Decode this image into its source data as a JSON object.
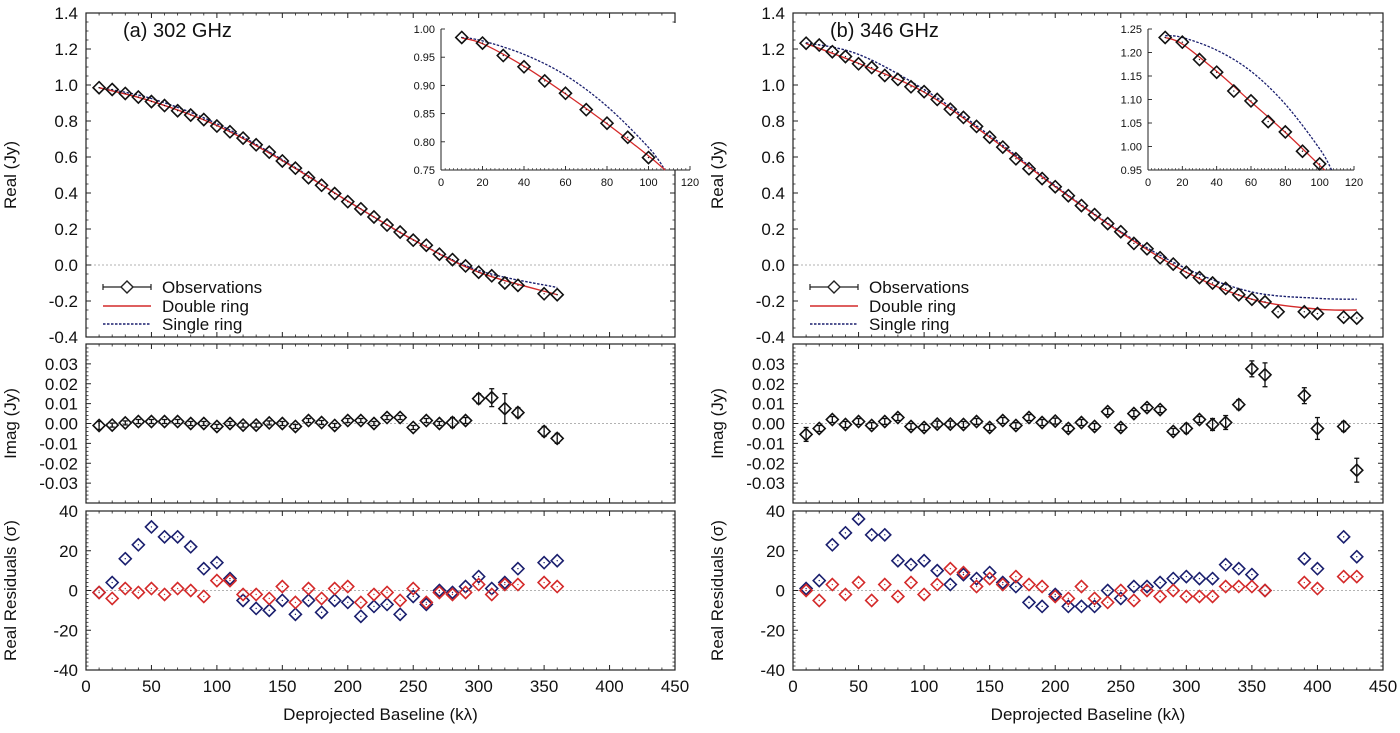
{
  "chart_data": [
    {
      "type": "scatter",
      "panel_label": "(a) 302 GHz",
      "xlabel": "Deprojected Baseline (kλ)",
      "xlim": [
        0,
        450
      ],
      "xticks": [
        0,
        50,
        100,
        150,
        200,
        250,
        300,
        350,
        400,
        450
      ],
      "legend": {
        "position": "bottom-left",
        "entries": [
          "Observations",
          "Double ring",
          "Single ring"
        ]
      },
      "real": {
        "ylabel": "Real (Jy)",
        "ylim": [
          -0.4,
          1.4
        ],
        "yticks": [
          "1.4",
          "1.2",
          "1.0",
          "0.8",
          "0.6",
          "0.4",
          "0.2",
          "0.0",
          "-0.2",
          "-0.4"
        ],
        "x": [
          10,
          20,
          30,
          40,
          50,
          60,
          70,
          80,
          90,
          100,
          110,
          120,
          130,
          140,
          150,
          160,
          170,
          180,
          190,
          200,
          210,
          220,
          230,
          240,
          250,
          260,
          270,
          280,
          290,
          300,
          310,
          320,
          330,
          350,
          360
        ],
        "observations": [
          0.985,
          0.975,
          0.953,
          0.933,
          0.908,
          0.886,
          0.857,
          0.833,
          0.808,
          0.772,
          0.74,
          0.705,
          0.668,
          0.627,
          0.578,
          0.538,
          0.485,
          0.443,
          0.397,
          0.352,
          0.312,
          0.267,
          0.222,
          0.183,
          0.138,
          0.11,
          0.06,
          0.03,
          -0.005,
          -0.04,
          -0.06,
          -0.1,
          -0.113,
          -0.16,
          -0.165
        ],
        "double_ring": {
          "x": [
            10,
            50,
            100,
            150,
            200,
            250,
            300,
            360
          ],
          "y": [
            0.985,
            0.91,
            0.775,
            0.58,
            0.355,
            0.14,
            -0.04,
            -0.165
          ]
        },
        "single_ring": {
          "x": [
            10,
            50,
            100,
            150,
            200,
            250,
            300,
            360
          ],
          "y": [
            0.985,
            0.925,
            0.785,
            0.585,
            0.355,
            0.14,
            -0.03,
            -0.125
          ]
        }
      },
      "inset": {
        "xlim": [
          0,
          120
        ],
        "ylim": [
          0.75,
          1.0
        ],
        "xticks": [
          "0",
          "20",
          "40",
          "60",
          "80",
          "100",
          "120"
        ],
        "yticks": [
          "1.00",
          "0.95",
          "0.90",
          "0.85",
          "0.80",
          "0.75"
        ],
        "x": [
          10,
          20,
          30,
          40,
          50,
          60,
          70,
          80,
          90,
          100
        ],
        "observations": [
          0.985,
          0.975,
          0.953,
          0.933,
          0.908,
          0.886,
          0.857,
          0.833,
          0.808,
          0.772
        ],
        "double_ring": {
          "x": [
            10,
            20,
            40,
            60,
            80,
            100,
            108
          ],
          "y": [
            0.984,
            0.974,
            0.934,
            0.885,
            0.832,
            0.775,
            0.75
          ]
        },
        "single_ring": {
          "x": [
            10,
            20,
            40,
            60,
            80,
            100,
            108
          ],
          "y": [
            0.985,
            0.979,
            0.955,
            0.918,
            0.863,
            0.79,
            0.75
          ]
        }
      },
      "imag": {
        "ylabel": "Imag (Jy)",
        "ylim": [
          -0.04,
          0.04
        ],
        "yticks": [
          "0.03",
          "0.02",
          "0.01",
          "0.00",
          "-0.01",
          "-0.02",
          "-0.03"
        ],
        "x": [
          10,
          20,
          30,
          40,
          50,
          60,
          70,
          80,
          90,
          100,
          110,
          120,
          130,
          140,
          150,
          160,
          170,
          180,
          190,
          200,
          210,
          220,
          230,
          240,
          250,
          260,
          270,
          280,
          290,
          300,
          310,
          320,
          330,
          350,
          360
        ],
        "y": [
          -0.001,
          -0.0008,
          0.0003,
          0.001,
          0.001,
          0.001,
          0.001,
          0.0,
          0.0,
          -0.0015,
          0.0,
          -0.0008,
          -0.0008,
          0.0003,
          0.0,
          -0.0015,
          0.0015,
          0.0005,
          -0.001,
          0.0015,
          0.0015,
          0.0,
          0.003,
          0.003,
          -0.002,
          0.0015,
          0.0,
          0.0005,
          0.0015,
          0.0125,
          0.013,
          0.0075,
          0.0055,
          -0.004,
          -0.0075
        ],
        "err": [
          0.002,
          0.001,
          0.001,
          0.001,
          0.001,
          0.001,
          0.001,
          0.001,
          0.001,
          0.001,
          0.001,
          0.001,
          0.001,
          0.001,
          0.001,
          0.001,
          0.001,
          0.001,
          0.001,
          0.001,
          0.001,
          0.001,
          0.001,
          0.001,
          0.001,
          0.001,
          0.001,
          0.0025,
          0.0015,
          0.0025,
          0.0045,
          0.0075,
          0.0025,
          0.0025,
          0.0025
        ]
      },
      "residuals": {
        "ylabel": "Real Residuals (σ)",
        "ylim": [
          -40,
          40
        ],
        "yticks": [
          "40",
          "20",
          "0",
          "-20",
          "-40"
        ],
        "x": [
          10,
          20,
          30,
          40,
          50,
          60,
          70,
          80,
          90,
          100,
          110,
          120,
          130,
          140,
          150,
          160,
          170,
          180,
          190,
          200,
          210,
          220,
          230,
          240,
          250,
          260,
          270,
          280,
          290,
          300,
          310,
          320,
          330,
          350,
          360
        ],
        "single_ring": [
          -1,
          4,
          16,
          23,
          32,
          27,
          27,
          22,
          11,
          14,
          6,
          -5,
          -9,
          -10,
          -5,
          -12,
          -5,
          -11,
          -5,
          -6,
          -13,
          -8,
          -7,
          -12,
          -3,
          -7,
          0,
          -1,
          2,
          7,
          1,
          4,
          11,
          14,
          15
        ],
        "double_ring": [
          -1,
          -4,
          1,
          -1,
          1,
          -2,
          1,
          0,
          -3,
          5,
          5,
          -2,
          -2,
          -4,
          2,
          -6,
          1,
          -4,
          1,
          2,
          -6,
          -2,
          -1,
          -5,
          1,
          -6,
          -1,
          -2,
          -1,
          3,
          -2,
          3,
          3,
          4,
          2
        ]
      }
    },
    {
      "type": "scatter",
      "panel_label": "(b) 346 GHz",
      "xlabel": "Deprojected Baseline (kλ)",
      "xlim": [
        0,
        450
      ],
      "xticks": [
        0,
        50,
        100,
        150,
        200,
        250,
        300,
        350,
        400,
        450
      ],
      "legend": {
        "position": "bottom-left",
        "entries": [
          "Observations",
          "Double ring",
          "Single ring"
        ]
      },
      "real": {
        "ylabel": "Real (Jy)",
        "ylim": [
          -0.4,
          1.4
        ],
        "yticks": [
          "1.4",
          "1.2",
          "1.0",
          "0.8",
          "0.6",
          "0.4",
          "0.2",
          "0.0",
          "-0.2",
          "-0.4"
        ],
        "x": [
          10,
          20,
          30,
          40,
          50,
          60,
          70,
          80,
          90,
          100,
          110,
          120,
          130,
          140,
          150,
          160,
          170,
          180,
          190,
          200,
          210,
          220,
          230,
          240,
          250,
          260,
          270,
          280,
          290,
          300,
          310,
          320,
          330,
          340,
          350,
          360,
          370,
          390,
          400,
          420,
          430
        ],
        "observations": [
          1.232,
          1.222,
          1.185,
          1.158,
          1.118,
          1.097,
          1.053,
          1.031,
          0.99,
          0.963,
          0.92,
          0.865,
          0.82,
          0.77,
          0.71,
          0.655,
          0.59,
          0.535,
          0.48,
          0.435,
          0.385,
          0.33,
          0.28,
          0.23,
          0.185,
          0.12,
          0.09,
          0.04,
          0.005,
          -0.04,
          -0.07,
          -0.1,
          -0.13,
          -0.165,
          -0.19,
          -0.205,
          -0.26,
          -0.26,
          -0.27,
          -0.29,
          -0.295
        ],
        "double_ring": {
          "x": [
            10,
            50,
            100,
            150,
            200,
            250,
            300,
            350,
            400,
            430
          ],
          "y": [
            1.23,
            1.12,
            0.96,
            0.71,
            0.435,
            0.18,
            -0.04,
            -0.19,
            -0.245,
            -0.25
          ]
        },
        "single_ring": {
          "x": [
            10,
            50,
            100,
            150,
            200,
            250,
            300,
            350,
            400,
            430
          ],
          "y": [
            1.235,
            1.17,
            0.975,
            0.72,
            0.44,
            0.185,
            -0.02,
            -0.15,
            -0.185,
            -0.19
          ]
        }
      },
      "inset": {
        "xlim": [
          0,
          120
        ],
        "ylim": [
          0.95,
          1.25
        ],
        "xticks": [
          "0",
          "20",
          "40",
          "60",
          "80",
          "100",
          "120"
        ],
        "yticks": [
          "1.25",
          "1.20",
          "1.15",
          "1.10",
          "1.05",
          "1.00",
          "0.95"
        ],
        "x": [
          10,
          20,
          30,
          40,
          50,
          60,
          70,
          80,
          90,
          100
        ],
        "observations": [
          1.232,
          1.222,
          1.185,
          1.158,
          1.118,
          1.097,
          1.053,
          1.031,
          0.99,
          0.963
        ],
        "double_ring": {
          "x": [
            10,
            20,
            40,
            60,
            80,
            100,
            103
          ],
          "y": [
            1.232,
            1.218,
            1.16,
            1.095,
            1.03,
            0.96,
            0.95
          ]
        },
        "single_ring": {
          "x": [
            10,
            20,
            40,
            60,
            80,
            100,
            107
          ],
          "y": [
            1.236,
            1.232,
            1.205,
            1.16,
            1.09,
            0.995,
            0.95
          ]
        }
      },
      "imag": {
        "ylabel": "Imag (Jy)",
        "ylim": [
          -0.04,
          0.04
        ],
        "yticks": [
          "0.03",
          "0.02",
          "0.01",
          "0.00",
          "-0.01",
          "-0.02",
          "-0.03"
        ],
        "x": [
          10,
          20,
          30,
          40,
          50,
          60,
          70,
          80,
          90,
          100,
          110,
          120,
          130,
          140,
          150,
          160,
          170,
          180,
          190,
          200,
          210,
          220,
          230,
          240,
          250,
          260,
          270,
          280,
          290,
          300,
          310,
          320,
          330,
          340,
          350,
          360,
          390,
          400,
          420,
          430
        ],
        "y": [
          -0.0055,
          -0.0025,
          0.002,
          -0.0005,
          0.001,
          -0.001,
          0.001,
          0.003,
          -0.0015,
          -0.002,
          -0.0003,
          -0.0003,
          -0.0005,
          0.001,
          -0.002,
          0.0015,
          -0.001,
          0.003,
          0.0005,
          0.0012,
          -0.0025,
          0.0005,
          -0.0015,
          0.006,
          -0.002,
          0.005,
          0.008,
          0.007,
          -0.004,
          -0.0025,
          0.002,
          -0.0005,
          0.0005,
          0.0095,
          0.0275,
          0.0245,
          0.014,
          -0.0025,
          -0.0015,
          -0.0235
        ],
        "err": [
          0.0035,
          0.0015,
          0.0015,
          0.0015,
          0.0015,
          0.0015,
          0.0015,
          0.0015,
          0.0015,
          0.0015,
          0.0015,
          0.0015,
          0.0015,
          0.0015,
          0.0015,
          0.0015,
          0.0015,
          0.0015,
          0.0015,
          0.0015,
          0.0015,
          0.0015,
          0.0015,
          0.0015,
          0.0015,
          0.0015,
          0.0015,
          0.0015,
          0.0015,
          0.0025,
          0.0015,
          0.003,
          0.0035,
          0.0025,
          0.004,
          0.006,
          0.004,
          0.0055,
          0.0025,
          0.006
        ]
      },
      "residuals": {
        "ylabel": "Real Residuals (σ)",
        "ylim": [
          -40,
          40
        ],
        "yticks": [
          "40",
          "20",
          "0",
          "-20",
          "-40"
        ],
        "x": [
          10,
          20,
          30,
          40,
          50,
          60,
          70,
          80,
          90,
          100,
          110,
          120,
          130,
          140,
          150,
          160,
          170,
          180,
          190,
          200,
          210,
          220,
          230,
          240,
          250,
          260,
          270,
          280,
          290,
          300,
          310,
          320,
          330,
          340,
          350,
          360,
          390,
          400,
          420,
          430
        ],
        "single_ring": [
          1,
          5,
          23,
          29,
          36,
          28,
          28,
          15,
          13,
          15,
          10,
          3,
          8,
          6,
          9,
          4,
          2,
          -6,
          -8,
          -2,
          -8,
          -8,
          -8,
          0,
          -4,
          2,
          2,
          4,
          6,
          7,
          6,
          6,
          13,
          11,
          8,
          0,
          16,
          11,
          27,
          17
        ],
        "double_ring": [
          0,
          -5,
          3,
          -2,
          4,
          -5,
          3,
          -3,
          4,
          -2,
          3,
          11,
          9,
          2,
          6,
          3,
          7,
          3,
          2,
          -3,
          -4,
          2,
          -4,
          -6,
          0,
          -5,
          0,
          -3,
          0,
          -3,
          -3,
          -3,
          2,
          2,
          2,
          0,
          4,
          1,
          7,
          7
        ]
      }
    }
  ],
  "colors": {
    "observations": "#111111",
    "double_ring": "#d42a2a",
    "single_ring": "#1a1f6e",
    "zero_line": "#999999"
  }
}
